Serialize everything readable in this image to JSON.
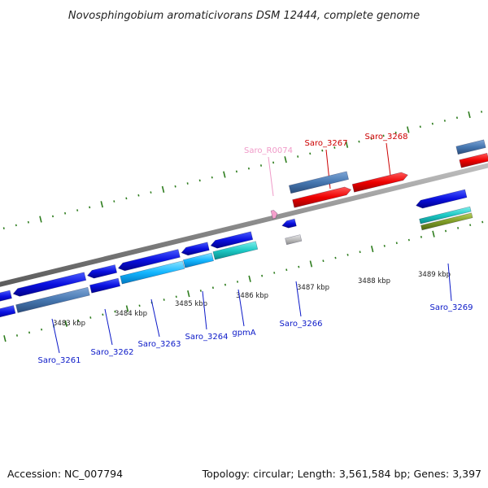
{
  "title": "Novosphingobium aromaticivorans DSM 12444, complete genome",
  "footer": {
    "accession": "Accession: NC_007794",
    "summary": "Topology: circular; Length: 3,561,584 bp; Genes: 3,397"
  },
  "colors": {
    "backbone": "#888888",
    "tick": "#2e7d1e",
    "label_blue": "#0b19c8",
    "label_red": "#cc0000",
    "label_pink": "#f09ac8"
  },
  "scale": {
    "unit": "kbp",
    "labels": [
      {
        "kbp": 3483,
        "text": "3483 kbp"
      },
      {
        "kbp": 3484,
        "text": "3484 kbp"
      },
      {
        "kbp": 3485,
        "text": "3485 kbp"
      },
      {
        "kbp": 3486,
        "text": "3486 kbp"
      },
      {
        "kbp": 3487,
        "text": "3487 kbp"
      },
      {
        "kbp": 3488,
        "text": "3488 kbp"
      },
      {
        "kbp": 3489,
        "text": "3489 kbp"
      }
    ]
  },
  "genes": [
    {
      "name": "Saro_3261",
      "color": "label_blue"
    },
    {
      "name": "Saro_3262",
      "color": "label_blue"
    },
    {
      "name": "Saro_3263",
      "color": "label_blue"
    },
    {
      "name": "Saro_3264",
      "color": "label_blue"
    },
    {
      "name": "gpmA",
      "color": "label_blue"
    },
    {
      "name": "Saro_3266",
      "color": "label_blue"
    },
    {
      "name": "Saro_R0074",
      "color": "label_pink"
    },
    {
      "name": "Saro_3267",
      "color": "label_red"
    },
    {
      "name": "Saro_3268",
      "color": "label_red"
    },
    {
      "name": "Saro_3269",
      "color": "label_blue"
    }
  ]
}
